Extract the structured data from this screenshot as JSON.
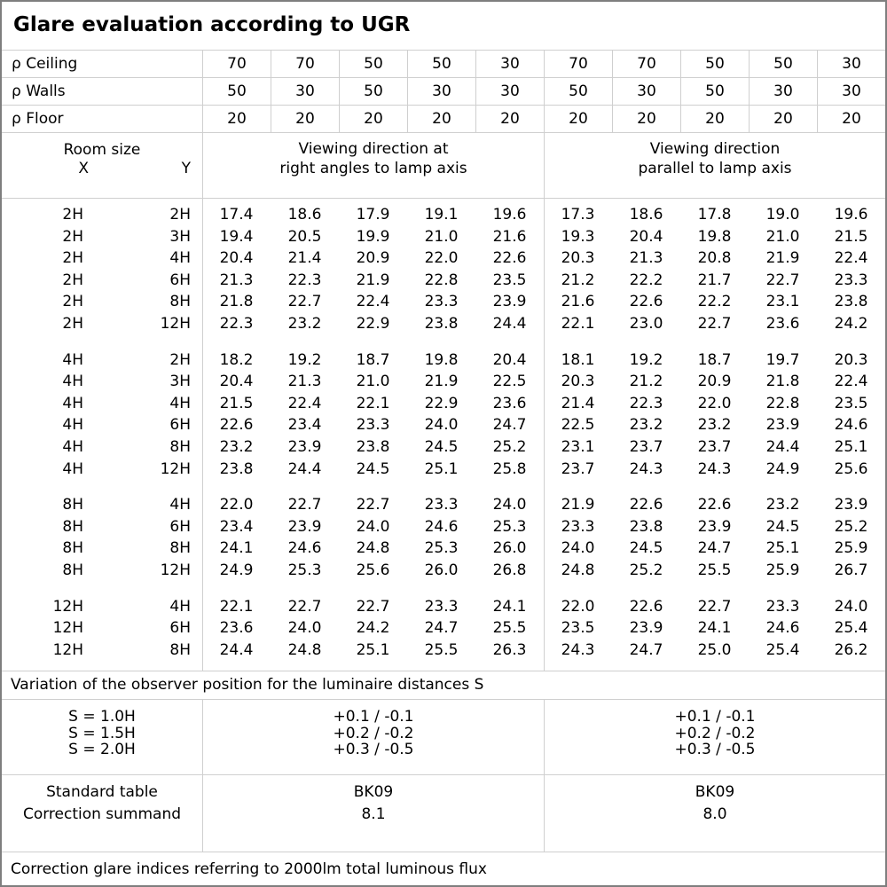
{
  "title": "Glare evaluation according to UGR",
  "reflectance_rows": [
    {
      "label": "ρ Ceiling",
      "values": [
        "70",
        "70",
        "50",
        "50",
        "30",
        "70",
        "70",
        "50",
        "50",
        "30"
      ]
    },
    {
      "label": "ρ Walls",
      "values": [
        "50",
        "30",
        "50",
        "30",
        "30",
        "50",
        "30",
        "50",
        "30",
        "30"
      ]
    },
    {
      "label": "ρ Floor",
      "values": [
        "20",
        "20",
        "20",
        "20",
        "20",
        "20",
        "20",
        "20",
        "20",
        "20"
      ]
    }
  ],
  "header": {
    "room_size": "Room size",
    "x": "X",
    "y": "Y",
    "group_left_line1": "Viewing direction at",
    "group_left_line2": "right angles to lamp axis",
    "group_right_line1": "Viewing direction",
    "group_right_line2": "parallel to lamp axis"
  },
  "body_blocks": [
    {
      "rows": [
        {
          "x": "2H",
          "y": "2H",
          "left": [
            "17.4",
            "18.6",
            "17.9",
            "19.1",
            "19.6"
          ],
          "right": [
            "17.3",
            "18.6",
            "17.8",
            "19.0",
            "19.6"
          ]
        },
        {
          "x": "2H",
          "y": "3H",
          "left": [
            "19.4",
            "20.5",
            "19.9",
            "21.0",
            "21.6"
          ],
          "right": [
            "19.3",
            "20.4",
            "19.8",
            "21.0",
            "21.5"
          ]
        },
        {
          "x": "2H",
          "y": "4H",
          "left": [
            "20.4",
            "21.4",
            "20.9",
            "22.0",
            "22.6"
          ],
          "right": [
            "20.3",
            "21.3",
            "20.8",
            "21.9",
            "22.4"
          ]
        },
        {
          "x": "2H",
          "y": "6H",
          "left": [
            "21.3",
            "22.3",
            "21.9",
            "22.8",
            "23.5"
          ],
          "right": [
            "21.2",
            "22.2",
            "21.7",
            "22.7",
            "23.3"
          ]
        },
        {
          "x": "2H",
          "y": "8H",
          "left": [
            "21.8",
            "22.7",
            "22.4",
            "23.3",
            "23.9"
          ],
          "right": [
            "21.6",
            "22.6",
            "22.2",
            "23.1",
            "23.8"
          ]
        },
        {
          "x": "2H",
          "y": "12H",
          "left": [
            "22.3",
            "23.2",
            "22.9",
            "23.8",
            "24.4"
          ],
          "right": [
            "22.1",
            "23.0",
            "22.7",
            "23.6",
            "24.2"
          ]
        }
      ]
    },
    {
      "rows": [
        {
          "x": "4H",
          "y": "2H",
          "left": [
            "18.2",
            "19.2",
            "18.7",
            "19.8",
            "20.4"
          ],
          "right": [
            "18.1",
            "19.2",
            "18.7",
            "19.7",
            "20.3"
          ]
        },
        {
          "x": "4H",
          "y": "3H",
          "left": [
            "20.4",
            "21.3",
            "21.0",
            "21.9",
            "22.5"
          ],
          "right": [
            "20.3",
            "21.2",
            "20.9",
            "21.8",
            "22.4"
          ]
        },
        {
          "x": "4H",
          "y": "4H",
          "left": [
            "21.5",
            "22.4",
            "22.1",
            "22.9",
            "23.6"
          ],
          "right": [
            "21.4",
            "22.3",
            "22.0",
            "22.8",
            "23.5"
          ]
        },
        {
          "x": "4H",
          "y": "6H",
          "left": [
            "22.6",
            "23.4",
            "23.3",
            "24.0",
            "24.7"
          ],
          "right": [
            "22.5",
            "23.2",
            "23.2",
            "23.9",
            "24.6"
          ]
        },
        {
          "x": "4H",
          "y": "8H",
          "left": [
            "23.2",
            "23.9",
            "23.8",
            "24.5",
            "25.2"
          ],
          "right": [
            "23.1",
            "23.7",
            "23.7",
            "24.4",
            "25.1"
          ]
        },
        {
          "x": "4H",
          "y": "12H",
          "left": [
            "23.8",
            "24.4",
            "24.5",
            "25.1",
            "25.8"
          ],
          "right": [
            "23.7",
            "24.3",
            "24.3",
            "24.9",
            "25.6"
          ]
        }
      ]
    },
    {
      "rows": [
        {
          "x": "8H",
          "y": "4H",
          "left": [
            "22.0",
            "22.7",
            "22.7",
            "23.3",
            "24.0"
          ],
          "right": [
            "21.9",
            "22.6",
            "22.6",
            "23.2",
            "23.9"
          ]
        },
        {
          "x": "8H",
          "y": "6H",
          "left": [
            "23.4",
            "23.9",
            "24.0",
            "24.6",
            "25.3"
          ],
          "right": [
            "23.3",
            "23.8",
            "23.9",
            "24.5",
            "25.2"
          ]
        },
        {
          "x": "8H",
          "y": "8H",
          "left": [
            "24.1",
            "24.6",
            "24.8",
            "25.3",
            "26.0"
          ],
          "right": [
            "24.0",
            "24.5",
            "24.7",
            "25.1",
            "25.9"
          ]
        },
        {
          "x": "8H",
          "y": "12H",
          "left": [
            "24.9",
            "25.3",
            "25.6",
            "26.0",
            "26.8"
          ],
          "right": [
            "24.8",
            "25.2",
            "25.5",
            "25.9",
            "26.7"
          ]
        }
      ]
    },
    {
      "rows": [
        {
          "x": "12H",
          "y": "4H",
          "left": [
            "22.1",
            "22.7",
            "22.7",
            "23.3",
            "24.1"
          ],
          "right": [
            "22.0",
            "22.6",
            "22.7",
            "23.3",
            "24.0"
          ]
        },
        {
          "x": "12H",
          "y": "6H",
          "left": [
            "23.6",
            "24.0",
            "24.2",
            "24.7",
            "25.5"
          ],
          "right": [
            "23.5",
            "23.9",
            "24.1",
            "24.6",
            "25.4"
          ]
        },
        {
          "x": "12H",
          "y": "8H",
          "left": [
            "24.4",
            "24.8",
            "25.1",
            "25.5",
            "26.3"
          ],
          "right": [
            "24.3",
            "24.7",
            "25.0",
            "25.4",
            "26.2"
          ]
        }
      ]
    }
  ],
  "variation_note": "Variation of the observer position for the luminaire distances S",
  "variation": {
    "s_labels": [
      "S = 1.0H",
      "S = 1.5H",
      "S = 2.0H"
    ],
    "left": [
      "+0.1 / -0.1",
      "+0.2 / -0.2",
      "+0.3 / -0.5"
    ],
    "right": [
      "+0.1 / -0.1",
      "+0.2 / -0.2",
      "+0.3 / -0.5"
    ]
  },
  "standard": {
    "labels": [
      "Standard table",
      "Correction summand"
    ],
    "left": [
      "BK09",
      "8.1"
    ],
    "right": [
      "BK09",
      "8.0"
    ]
  },
  "footer_note": "Correction glare indices referring to 2000lm total luminous flux",
  "colors": {
    "grid_line": "#cfcfcf",
    "outer_border": "#7e7e7e",
    "text": "#000000",
    "background": "#ffffff"
  }
}
